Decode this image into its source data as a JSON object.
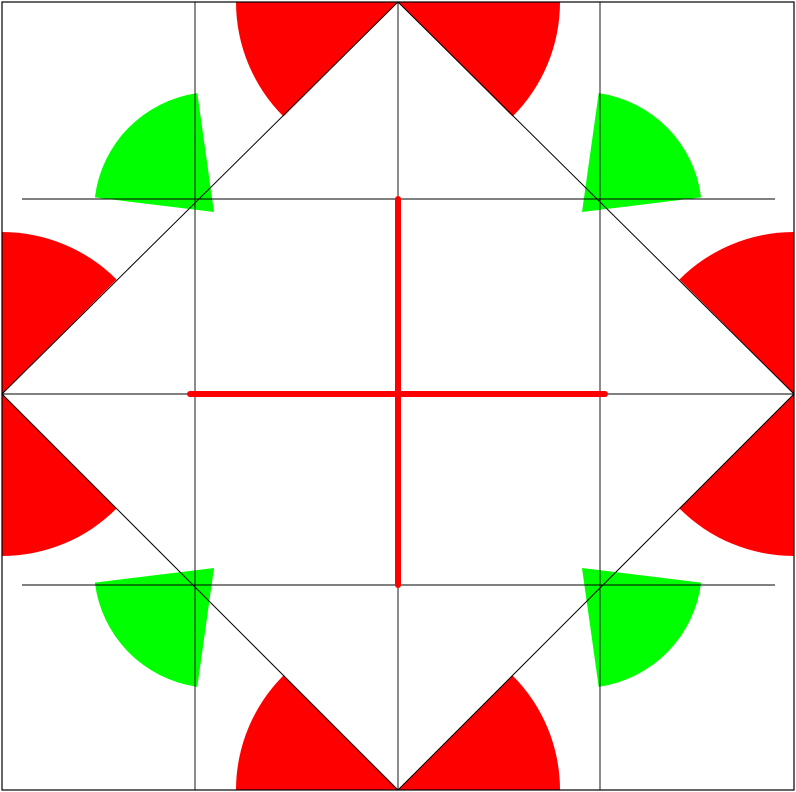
{
  "diagram": {
    "colors": {
      "background": "#ffffff",
      "line": "#000000",
      "primary_sector": "#ff0000",
      "secondary_sector": "#00ff00",
      "axis": "#ff0000"
    },
    "red_sector_count": 8,
    "green_sector_count": 4,
    "axis_count": 2
  }
}
